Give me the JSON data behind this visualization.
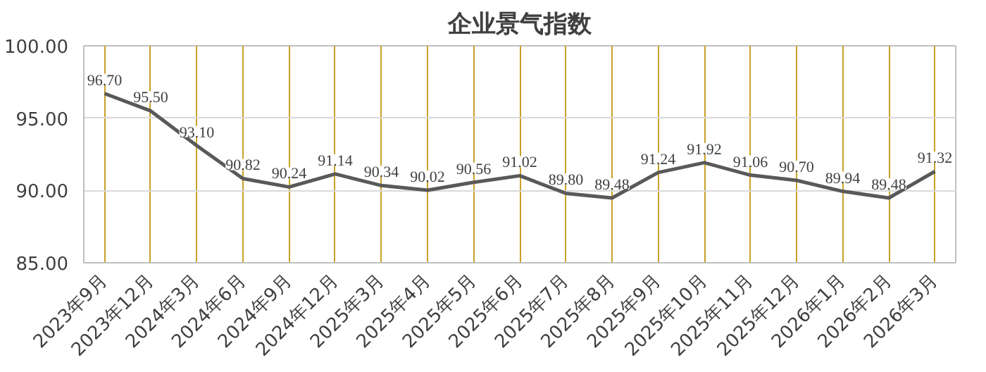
{
  "chart_data": {
    "type": "line",
    "title": "企业景气指数",
    "categories": [
      "2023年9月",
      "2023年12月",
      "2024年3月",
      "2024年6月",
      "2024年9月",
      "2024年12月",
      "2025年3月",
      "2025年4月",
      "2025年5月",
      "2025年6月",
      "2025年7月",
      "2025年8月",
      "2025年9月",
      "2025年10月",
      "2025年11月",
      "2025年12月",
      "2026年1月",
      "2026年2月",
      "2026年3月"
    ],
    "series": [
      {
        "color": "#595959",
        "values": [
          96.7,
          95.5,
          93.1,
          90.82,
          90.24,
          91.14,
          90.34,
          90.02,
          90.56,
          91.02,
          89.8,
          89.48,
          91.24,
          91.92,
          91.06,
          90.7,
          89.94,
          89.48,
          91.32
        ],
        "value_labels": [
          "96.70",
          "95.50",
          "93.10",
          "90.82",
          "90.24",
          "91.14",
          "90.34",
          "90.02",
          "90.56",
          "91.02",
          "89.80",
          "89.48",
          "91.24",
          "91.92",
          "91.06",
          "90.70",
          "89.94",
          "89.48",
          "91.32"
        ]
      }
    ],
    "ylim": [
      85,
      100
    ],
    "yticks": [
      {
        "value": 85,
        "label": "85.00"
      },
      {
        "value": 90,
        "label": "90.00"
      },
      {
        "value": 95,
        "label": "95.00"
      },
      {
        "value": 100,
        "label": "100.00"
      }
    ],
    "grid": true,
    "marker": "none",
    "line_style": "solid"
  }
}
